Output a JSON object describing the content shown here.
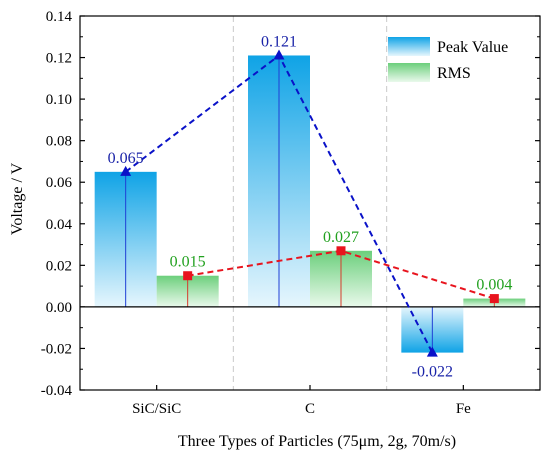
{
  "chart_data": {
    "type": "bar",
    "categories": [
      "SiC/SiC",
      "C",
      "Fe"
    ],
    "series": [
      {
        "name": "Peak Value",
        "values": [
          0.065,
          0.121,
          -0.022
        ],
        "labels": [
          "0.065",
          "0.121",
          "-0.022"
        ],
        "color": "#1a9fe0",
        "line_color": "#0a12c8"
      },
      {
        "name": "RMS",
        "values": [
          0.015,
          0.027,
          0.004
        ],
        "labels": [
          "0.015",
          "0.027",
          "0.004"
        ],
        "color": "#7fd58a",
        "line_color": "#e8141e"
      }
    ],
    "xlabel": "Three Types of Particles (75μm, 2g, 70m/s)",
    "ylabel": "Voltage / V",
    "ylim": [
      -0.04,
      0.14
    ],
    "yticks": [
      "-0.04",
      "-0.02",
      "0.00",
      "0.02",
      "0.04",
      "0.06",
      "0.08",
      "0.10",
      "0.12",
      "0.14"
    ],
    "legend_position": "top-right",
    "grid": false
  }
}
